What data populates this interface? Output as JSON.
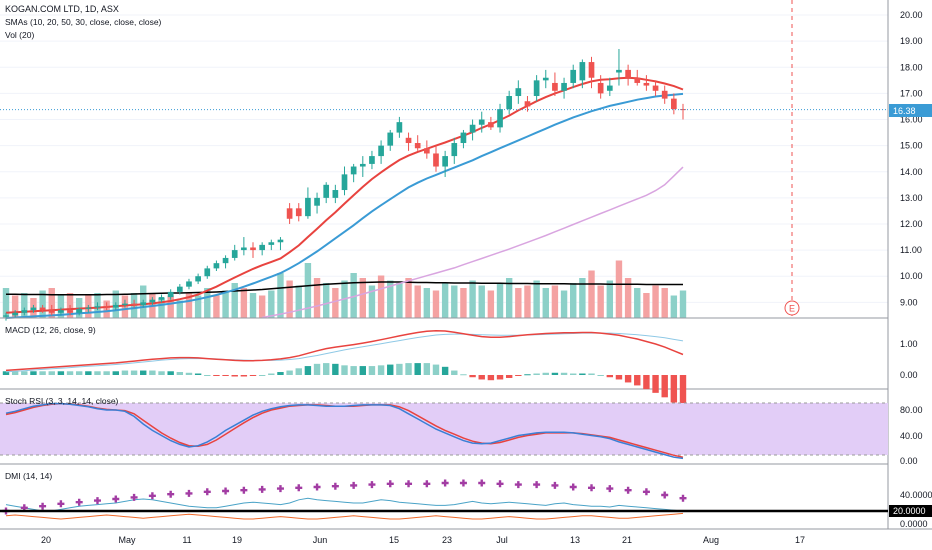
{
  "header": {
    "symbol": "KOGAN.COM LTD, 1D, ASX",
    "smas_label": "SMAs (10, 20, 50, 30, close, close, close)",
    "vol_label": "Vol (20)"
  },
  "price_axis": {
    "ticks": [
      "20.00",
      "19.00",
      "18.00",
      "17.00",
      "16.00",
      "15.00",
      "14.00",
      "13.00",
      "12.00",
      "11.00",
      "10.00",
      "9.00"
    ],
    "current_price": "16.38",
    "ylim": [
      8.4,
      20.5
    ]
  },
  "earnings_marker": "E",
  "panels": {
    "macd": {
      "label": "MACD (12, 26, close, 9)",
      "ticks": [
        "1.00",
        "0.00"
      ]
    },
    "stoch": {
      "label": "Stoch RSI (3, 3, 14, 14, close)",
      "ticks": [
        "80.00",
        "40.00",
        "0.00"
      ]
    },
    "dmi": {
      "label": "DMI (14, 14)",
      "ticks": [
        "40.0000",
        "20.0000",
        "0.0000"
      ]
    }
  },
  "time_axis": [
    "20",
    "May",
    "11",
    "19",
    "Jun",
    "15",
    "23",
    "Jul",
    "13",
    "21",
    "Aug",
    "17"
  ],
  "colors": {
    "up": "#26a69a",
    "down": "#ef5350",
    "vol_up": "#8cd0c8",
    "vol_down": "#f4a2a2",
    "sma10": "#e8433f",
    "sma20": "#3a9bd5",
    "sma50": "#d9a5e0",
    "vol_ma": "#000000",
    "macd": "#e8433f",
    "signal": "#8fc9e6",
    "stoch_k": "#3a7fd5",
    "stoch_d": "#e8433f",
    "stoch_band": "#e2cdf7",
    "dmi_adx": "#a23ca3",
    "dmi_plus": "#4aa3c7",
    "dmi_minus": "#f06a2a",
    "current_price_bg": "#3a9bd5"
  },
  "chart_data": {
    "type": "candlestick",
    "title": "KOGAN.COM LTD, 1D, ASX",
    "candles": [
      [
        8.45,
        8.6,
        8.3,
        8.5
      ],
      [
        8.5,
        8.7,
        8.4,
        8.6
      ],
      [
        8.6,
        8.8,
        8.5,
        8.7
      ],
      [
        8.7,
        8.9,
        8.6,
        8.8
      ],
      [
        8.8,
        8.9,
        8.6,
        8.7
      ],
      [
        8.7,
        8.9,
        8.5,
        8.6
      ],
      [
        8.6,
        8.8,
        8.5,
        8.7
      ],
      [
        8.7,
        8.9,
        8.5,
        8.6
      ],
      [
        8.6,
        8.8,
        8.5,
        8.75
      ],
      [
        8.75,
        8.9,
        8.6,
        8.8
      ],
      [
        8.8,
        9.0,
        8.7,
        8.85
      ],
      [
        8.85,
        9.0,
        8.7,
        8.8
      ],
      [
        8.8,
        9.0,
        8.7,
        8.9
      ],
      [
        8.9,
        9.1,
        8.8,
        8.95
      ],
      [
        8.95,
        9.1,
        8.8,
        8.9
      ],
      [
        8.9,
        9.1,
        8.8,
        9.0
      ],
      [
        9.0,
        9.2,
        8.9,
        9.1
      ],
      [
        9.1,
        9.3,
        9.0,
        9.2
      ],
      [
        9.2,
        9.5,
        9.1,
        9.4
      ],
      [
        9.4,
        9.7,
        9.3,
        9.6
      ],
      [
        9.6,
        9.9,
        9.5,
        9.8
      ],
      [
        9.8,
        10.1,
        9.7,
        10.0
      ],
      [
        10.0,
        10.4,
        9.9,
        10.3
      ],
      [
        10.3,
        10.6,
        10.2,
        10.5
      ],
      [
        10.5,
        10.8,
        10.3,
        10.7
      ],
      [
        10.7,
        11.2,
        10.6,
        11.0
      ],
      [
        11.0,
        11.5,
        10.8,
        11.1
      ],
      [
        11.1,
        11.3,
        10.7,
        11.0
      ],
      [
        11.0,
        11.3,
        10.8,
        11.2
      ],
      [
        11.2,
        11.4,
        11.0,
        11.3
      ],
      [
        11.3,
        11.5,
        11.0,
        11.4
      ],
      [
        12.6,
        12.8,
        12.0,
        12.2
      ],
      [
        12.6,
        12.8,
        12.1,
        12.3
      ],
      [
        12.3,
        13.4,
        12.2,
        13.0
      ],
      [
        12.7,
        13.2,
        12.4,
        13.0
      ],
      [
        13.0,
        13.6,
        12.8,
        13.5
      ],
      [
        13.0,
        13.5,
        12.8,
        13.3
      ],
      [
        13.3,
        14.2,
        13.1,
        13.9
      ],
      [
        13.9,
        14.3,
        13.6,
        14.2
      ],
      [
        14.2,
        14.6,
        13.8,
        14.3
      ],
      [
        14.3,
        14.8,
        14.1,
        14.6
      ],
      [
        14.6,
        15.2,
        14.3,
        15.0
      ],
      [
        15.0,
        15.6,
        14.8,
        15.5
      ],
      [
        15.5,
        16.1,
        15.3,
        15.9
      ],
      [
        15.3,
        15.5,
        14.8,
        15.1
      ],
      [
        15.1,
        15.4,
        14.8,
        14.9
      ],
      [
        14.9,
        15.2,
        14.5,
        14.7
      ],
      [
        14.7,
        15.0,
        14.0,
        14.2
      ],
      [
        14.2,
        14.8,
        13.8,
        14.6
      ],
      [
        14.6,
        15.3,
        14.3,
        15.1
      ],
      [
        15.1,
        15.6,
        14.9,
        15.5
      ],
      [
        15.5,
        16.0,
        15.2,
        15.8
      ],
      [
        15.8,
        16.3,
        15.5,
        16.0
      ],
      [
        15.9,
        16.1,
        15.6,
        15.7
      ],
      [
        15.7,
        16.6,
        15.5,
        16.4
      ],
      [
        16.4,
        17.1,
        16.2,
        16.9
      ],
      [
        16.9,
        17.5,
        16.6,
        17.2
      ],
      [
        16.7,
        16.9,
        16.3,
        16.5
      ],
      [
        16.9,
        17.7,
        16.7,
        17.5
      ],
      [
        17.5,
        17.9,
        17.2,
        17.6
      ],
      [
        17.4,
        17.8,
        16.9,
        17.1
      ],
      [
        17.1,
        17.6,
        16.8,
        17.4
      ],
      [
        17.4,
        18.1,
        17.2,
        17.9
      ],
      [
        17.5,
        18.3,
        17.2,
        18.2
      ],
      [
        18.2,
        18.4,
        17.2,
        17.6
      ],
      [
        17.4,
        17.7,
        16.8,
        17.0
      ],
      [
        17.1,
        17.6,
        16.9,
        17.3
      ],
      [
        17.8,
        18.7,
        17.3,
        17.9
      ],
      [
        17.9,
        18.1,
        17.3,
        17.6
      ],
      [
        17.6,
        17.9,
        17.3,
        17.4
      ],
      [
        17.4,
        17.7,
        17.1,
        17.3
      ],
      [
        17.3,
        17.5,
        16.9,
        17.1
      ],
      [
        17.1,
        17.3,
        16.6,
        16.8
      ],
      [
        16.8,
        17.0,
        16.2,
        16.4
      ],
      [
        16.4,
        16.6,
        16.0,
        16.38
      ]
    ],
    "volume": [
      [
        1.2,
        1
      ],
      [
        0.9,
        0
      ],
      [
        1.0,
        1
      ],
      [
        0.8,
        0
      ],
      [
        1.1,
        1
      ],
      [
        1.2,
        0
      ],
      [
        0.9,
        1
      ],
      [
        1.0,
        0
      ],
      [
        0.8,
        1
      ],
      [
        0.9,
        0
      ],
      [
        1.0,
        1
      ],
      [
        0.7,
        0
      ],
      [
        1.1,
        1
      ],
      [
        0.9,
        0
      ],
      [
        1.0,
        1
      ],
      [
        1.3,
        1
      ],
      [
        1.0,
        0
      ],
      [
        0.8,
        1
      ],
      [
        0.9,
        0
      ],
      [
        0.7,
        1
      ],
      [
        1.0,
        0
      ],
      [
        0.9,
        1
      ],
      [
        1.2,
        1
      ],
      [
        0.9,
        0
      ],
      [
        1.1,
        1
      ],
      [
        1.4,
        1
      ],
      [
        1.2,
        0
      ],
      [
        1.0,
        1
      ],
      [
        0.9,
        0
      ],
      [
        1.1,
        1
      ],
      [
        1.8,
        1
      ],
      [
        1.5,
        0
      ],
      [
        1.3,
        1
      ],
      [
        2.2,
        1
      ],
      [
        1.6,
        0
      ],
      [
        1.4,
        1
      ],
      [
        1.2,
        0
      ],
      [
        1.5,
        1
      ],
      [
        1.8,
        1
      ],
      [
        1.6,
        0
      ],
      [
        1.3,
        1
      ],
      [
        1.7,
        0
      ],
      [
        1.5,
        1
      ],
      [
        1.4,
        1
      ],
      [
        1.6,
        0
      ],
      [
        1.3,
        0
      ],
      [
        1.2,
        1
      ],
      [
        1.1,
        0
      ],
      [
        1.4,
        1
      ],
      [
        1.3,
        1
      ],
      [
        1.2,
        0
      ],
      [
        1.5,
        1
      ],
      [
        1.3,
        1
      ],
      [
        1.1,
        0
      ],
      [
        1.4,
        1
      ],
      [
        1.6,
        1
      ],
      [
        1.2,
        0
      ],
      [
        1.3,
        0
      ],
      [
        1.5,
        1
      ],
      [
        1.2,
        1
      ],
      [
        1.3,
        0
      ],
      [
        1.1,
        1
      ],
      [
        1.4,
        1
      ],
      [
        1.6,
        1
      ],
      [
        1.9,
        0
      ],
      [
        1.3,
        0
      ],
      [
        1.5,
        1
      ],
      [
        2.3,
        0
      ],
      [
        1.6,
        0
      ],
      [
        1.2,
        1
      ],
      [
        1.0,
        0
      ],
      [
        1.3,
        0
      ],
      [
        1.2,
        0
      ],
      [
        0.9,
        1
      ],
      [
        1.1,
        1
      ]
    ],
    "sma10": [
      8.6,
      8.62,
      8.64,
      8.66,
      8.68,
      8.7,
      8.72,
      8.74,
      8.76,
      8.78,
      8.8,
      8.82,
      8.85,
      8.88,
      8.9,
      8.93,
      8.96,
      9.0,
      9.05,
      9.12,
      9.2,
      9.3,
      9.45,
      9.6,
      9.78,
      9.95,
      10.12,
      10.28,
      10.42,
      10.55,
      10.68,
      10.92,
      11.18,
      11.5,
      11.82,
      12.14,
      12.45,
      12.78,
      13.1,
      13.42,
      13.72,
      13.98,
      14.22,
      14.45,
      14.62,
      14.76,
      14.88,
      15.0,
      15.12,
      15.25,
      15.38,
      15.52,
      15.68,
      15.82,
      15.98,
      16.15,
      16.35,
      16.52,
      16.7,
      16.86,
      17.0,
      17.12,
      17.24,
      17.36,
      17.46,
      17.52,
      17.54,
      17.58,
      17.6,
      17.58,
      17.52,
      17.46,
      17.38,
      17.28,
      17.15
    ],
    "sma20": [
      8.4,
      8.42,
      8.44,
      8.46,
      8.48,
      8.5,
      8.52,
      8.55,
      8.58,
      8.6,
      8.63,
      8.66,
      8.7,
      8.74,
      8.78,
      8.82,
      8.86,
      8.9,
      8.95,
      9.0,
      9.05,
      9.12,
      9.2,
      9.28,
      9.38,
      9.48,
      9.6,
      9.72,
      9.85,
      9.98,
      10.12,
      10.3,
      10.5,
      10.72,
      10.95,
      11.2,
      11.45,
      11.7,
      11.95,
      12.22,
      12.48,
      12.72,
      12.95,
      13.18,
      13.4,
      13.58,
      13.74,
      13.88,
      14.02,
      14.16,
      14.3,
      14.44,
      14.6,
      14.75,
      14.9,
      15.05,
      15.2,
      15.35,
      15.5,
      15.65,
      15.8,
      15.94,
      16.08,
      16.2,
      16.32,
      16.42,
      16.52,
      16.6,
      16.68,
      16.76,
      16.82,
      16.88,
      16.92,
      16.95,
      16.98
    ],
    "sma50": [
      7.0,
      7.05,
      7.1,
      7.15,
      7.2,
      7.25,
      7.3,
      7.35,
      7.4,
      7.45,
      7.5,
      7.55,
      7.6,
      7.65,
      7.7,
      7.75,
      7.8,
      7.85,
      7.9,
      7.95,
      8.0,
      8.05,
      8.1,
      8.15,
      8.2,
      8.25,
      8.3,
      8.36,
      8.42,
      8.48,
      8.55,
      8.62,
      8.7,
      8.78,
      8.86,
      8.95,
      9.04,
      9.13,
      9.22,
      9.32,
      9.42,
      9.52,
      9.62,
      9.72,
      9.82,
      9.92,
      10.02,
      10.12,
      10.22,
      10.32,
      10.44,
      10.56,
      10.68,
      10.8,
      10.92,
      11.04,
      11.17,
      11.3,
      11.43,
      11.56,
      11.7,
      11.84,
      11.98,
      12.12,
      12.26,
      12.4,
      12.54,
      12.68,
      12.82,
      12.96,
      13.1,
      13.28,
      13.5,
      13.84,
      14.18
    ],
    "vol_ma": [
      0.95,
      0.95,
      0.94,
      0.94,
      0.94,
      0.93,
      0.93,
      0.93,
      0.93,
      0.93,
      0.93,
      0.94,
      0.94,
      0.95,
      0.96,
      0.97,
      0.98,
      0.99,
      1.0,
      1.0,
      1.01,
      1.02,
      1.03,
      1.04,
      1.06,
      1.08,
      1.1,
      1.12,
      1.14,
      1.17,
      1.2,
      1.23,
      1.26,
      1.29,
      1.32,
      1.35,
      1.37,
      1.39,
      1.41,
      1.42,
      1.43,
      1.44,
      1.44,
      1.44,
      1.43,
      1.42,
      1.42,
      1.41,
      1.41,
      1.4,
      1.4,
      1.4,
      1.39,
      1.39,
      1.39,
      1.38,
      1.38,
      1.38,
      1.37,
      1.37,
      1.37,
      1.37,
      1.36,
      1.36,
      1.36,
      1.36,
      1.35,
      1.35,
      1.35,
      1.35,
      1.34,
      1.34,
      1.34,
      1.34,
      1.34
    ],
    "macd": [
      0.15,
      0.17,
      0.19,
      0.21,
      0.23,
      0.25,
      0.27,
      0.29,
      0.31,
      0.33,
      0.35,
      0.37,
      0.39,
      0.42,
      0.45,
      0.48,
      0.51,
      0.53,
      0.55,
      0.56,
      0.56,
      0.55,
      0.53,
      0.51,
      0.49,
      0.47,
      0.46,
      0.46,
      0.47,
      0.49,
      0.52,
      0.56,
      0.62,
      0.7,
      0.78,
      0.85,
      0.9,
      0.94,
      0.98,
      1.03,
      1.08,
      1.14,
      1.2,
      1.26,
      1.32,
      1.37,
      1.41,
      1.43,
      1.42,
      1.38,
      1.33,
      1.28,
      1.24,
      1.22,
      1.22,
      1.24,
      1.27,
      1.3,
      1.32,
      1.34,
      1.35,
      1.36,
      1.36,
      1.37,
      1.37,
      1.35,
      1.32,
      1.28,
      1.22,
      1.16,
      1.08,
      1.0,
      0.9,
      0.78,
      0.66
    ],
    "signal": [
      0.1,
      0.12,
      0.14,
      0.16,
      0.18,
      0.2,
      0.22,
      0.24,
      0.26,
      0.28,
      0.3,
      0.32,
      0.34,
      0.36,
      0.39,
      0.42,
      0.45,
      0.48,
      0.5,
      0.52,
      0.53,
      0.53,
      0.53,
      0.52,
      0.5,
      0.49,
      0.48,
      0.47,
      0.47,
      0.47,
      0.48,
      0.5,
      0.53,
      0.58,
      0.63,
      0.69,
      0.75,
      0.81,
      0.86,
      0.91,
      0.96,
      1.01,
      1.06,
      1.11,
      1.16,
      1.21,
      1.25,
      1.29,
      1.31,
      1.32,
      1.32,
      1.31,
      1.3,
      1.29,
      1.28,
      1.28,
      1.28,
      1.29,
      1.3,
      1.31,
      1.32,
      1.33,
      1.34,
      1.35,
      1.35,
      1.35,
      1.35,
      1.34,
      1.32,
      1.3,
      1.27,
      1.24,
      1.2,
      1.15,
      1.1
    ],
    "stoch_k": [
      75,
      78,
      82,
      86,
      88,
      90,
      90,
      89,
      87,
      85,
      82,
      80,
      80,
      78,
      70,
      58,
      48,
      40,
      32,
      26,
      22,
      24,
      30,
      38,
      48,
      56,
      64,
      72,
      78,
      82,
      85,
      87,
      88,
      88,
      87,
      86,
      86,
      86,
      87,
      88,
      88,
      88,
      87,
      82,
      74,
      66,
      58,
      50,
      44,
      38,
      32,
      28,
      27,
      28,
      32,
      36,
      40,
      42,
      44,
      45,
      45,
      45,
      44,
      42,
      40,
      38,
      35,
      30,
      26,
      22,
      18,
      14,
      10,
      6,
      4
    ],
    "stoch_d": [
      73,
      76,
      80,
      84,
      87,
      89,
      90,
      89,
      88,
      86,
      83,
      81,
      80,
      79,
      74,
      64,
      54,
      44,
      36,
      29,
      24,
      23,
      26,
      33,
      42,
      51,
      60,
      68,
      75,
      80,
      83,
      86,
      87,
      88,
      88,
      87,
      86,
      86,
      86,
      87,
      88,
      88,
      88,
      85,
      79,
      71,
      63,
      55,
      48,
      42,
      36,
      31,
      28,
      27,
      29,
      33,
      37,
      40,
      42,
      44,
      44,
      44,
      44,
      43,
      41,
      39,
      37,
      33,
      29,
      25,
      21,
      17,
      13,
      9,
      6
    ],
    "dmi_adx": [
      20,
      22,
      24,
      25,
      26,
      28,
      29,
      30,
      31,
      32,
      33,
      34,
      35,
      36,
      37,
      38,
      39,
      40,
      41,
      42,
      42,
      43,
      44,
      45,
      45,
      46,
      46,
      47,
      47,
      48,
      48,
      48,
      49,
      49,
      50,
      50,
      51,
      51,
      52,
      52,
      53,
      53,
      54,
      54,
      54,
      54,
      54,
      55,
      55,
      55,
      55,
      55,
      55,
      54,
      54,
      54,
      53,
      53,
      53,
      52,
      52,
      51,
      50,
      50,
      49,
      49,
      48,
      47,
      46,
      45,
      44,
      42,
      40,
      38,
      36
    ],
    "dmi_plus": [
      28,
      26,
      24,
      22,
      20,
      20,
      22,
      24,
      26,
      27,
      28,
      29,
      30,
      32,
      34,
      35,
      34,
      32,
      30,
      28,
      26,
      25,
      24,
      24,
      26,
      28,
      30,
      31,
      30,
      29,
      28,
      30,
      34,
      36,
      34,
      33,
      32,
      31,
      30,
      30,
      32,
      34,
      33,
      31,
      30,
      29,
      28,
      27,
      27,
      28,
      30,
      32,
      30,
      29,
      30,
      31,
      30,
      29,
      28,
      27,
      29,
      30,
      28,
      27,
      26,
      26,
      25,
      27,
      26,
      25,
      24,
      23,
      22,
      21,
      20
    ],
    "dmi_minus": [
      14,
      15,
      14,
      13,
      12,
      11,
      10,
      11,
      12,
      13,
      14,
      15,
      14,
      13,
      12,
      11,
      12,
      13,
      14,
      15,
      16,
      15,
      14,
      13,
      12,
      11,
      10,
      10,
      11,
      12,
      13,
      12,
      11,
      10,
      10,
      11,
      12,
      13,
      14,
      13,
      12,
      11,
      10,
      10,
      11,
      12,
      13,
      14,
      13,
      12,
      11,
      10,
      10,
      11,
      12,
      13,
      12,
      11,
      10,
      10,
      11,
      12,
      13,
      14,
      14,
      13,
      12,
      11,
      11,
      12,
      13,
      14,
      15,
      16,
      17
    ]
  }
}
